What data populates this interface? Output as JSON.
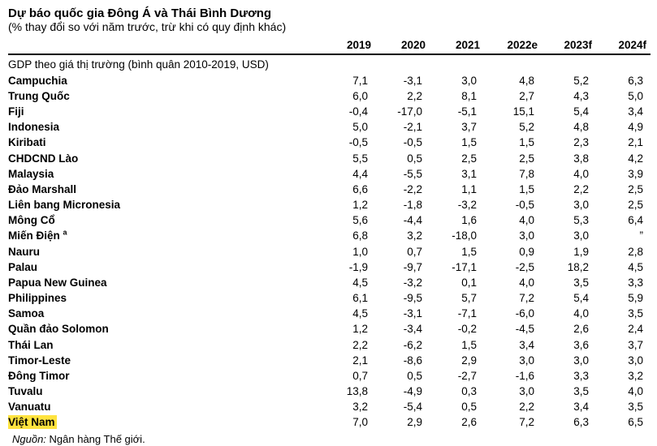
{
  "chart_data": {
    "type": "table",
    "title": "Dự báo quốc gia Đông Á và Thái Bình Dương",
    "subtitle": "(% thay đổi so với năm trước, trừ khi có quy định khác)",
    "columns": [
      "2019",
      "2020",
      "2021",
      "2022e",
      "2023f",
      "2024f"
    ],
    "section_label": "GDP theo giá thị trường (bình quân 2010-2019, USD)",
    "rows": [
      {
        "country": "Campuchia",
        "values": [
          "7,1",
          "-3,1",
          "3,0",
          "4,8",
          "5,2",
          "6,3"
        ]
      },
      {
        "country": "Trung Quốc",
        "values": [
          "6,0",
          "2,2",
          "8,1",
          "2,7",
          "4,3",
          "5,0"
        ]
      },
      {
        "country": "Fiji",
        "values": [
          "-0,4",
          "-17,0",
          "-5,1",
          "15,1",
          "5,4",
          "3,4"
        ]
      },
      {
        "country": "Indonesia",
        "values": [
          "5,0",
          "-2,1",
          "3,7",
          "5,2",
          "4,8",
          "4,9"
        ]
      },
      {
        "country": "Kiribati",
        "values": [
          "-0,5",
          "-0,5",
          "1,5",
          "1,5",
          "2,3",
          "2,1"
        ]
      },
      {
        "country": "CHDCND Lào",
        "values": [
          "5,5",
          "0,5",
          "2,5",
          "2,5",
          "3,8",
          "4,2"
        ]
      },
      {
        "country": "Malaysia",
        "values": [
          "4,4",
          "-5,5",
          "3,1",
          "7,8",
          "4,0",
          "3,9"
        ]
      },
      {
        "country": "Đảo Marshall",
        "values": [
          "6,6",
          "-2,2",
          "1,1",
          "1,5",
          "2,2",
          "2,5"
        ]
      },
      {
        "country": "Liên bang Micronesia",
        "values": [
          "1,2",
          "-1,8",
          "-3,2",
          "-0,5",
          "3,0",
          "2,5"
        ]
      },
      {
        "country": "Mông Cổ",
        "values": [
          "5,6",
          "-4,4",
          "1,6",
          "4,0",
          "5,3",
          "6,4"
        ]
      },
      {
        "country": "Miến Điện",
        "footnote_marker": "a",
        "values": [
          "6,8",
          "3,2",
          "-18,0",
          "3,0",
          "3,0",
          "”"
        ]
      },
      {
        "country": "Nauru",
        "values": [
          "1,0",
          "0,7",
          "1,5",
          "0,9",
          "1,9",
          "2,8"
        ]
      },
      {
        "country": "Palau",
        "values": [
          "-1,9",
          "-9,7",
          "-17,1",
          "-2,5",
          "18,2",
          "4,5"
        ]
      },
      {
        "country": "Papua New Guinea",
        "values": [
          "4,5",
          "-3,2",
          "0,1",
          "4,0",
          "3,5",
          "3,3"
        ]
      },
      {
        "country": "Philippines",
        "values": [
          "6,1",
          "-9,5",
          "5,7",
          "7,2",
          "5,4",
          "5,9"
        ]
      },
      {
        "country": "Samoa",
        "values": [
          "4,5",
          "-3,1",
          "-7,1",
          "-6,0",
          "4,0",
          "3,5"
        ]
      },
      {
        "country": "Quần đảo Solomon",
        "values": [
          "1,2",
          "-3,4",
          "-0,2",
          "-4,5",
          "2,6",
          "2,4"
        ]
      },
      {
        "country": "Thái Lan",
        "values": [
          "2,2",
          "-6,2",
          "1,5",
          "3,4",
          "3,6",
          "3,7"
        ]
      },
      {
        "country": "Timor-Leste",
        "values": [
          "2,1",
          "-8,6",
          "2,9",
          "3,0",
          "3,0",
          "3,0"
        ]
      },
      {
        "country": "Đông Timor",
        "values": [
          "0,7",
          "0,5",
          "-2,7",
          "-1,6",
          "3,3",
          "3,2"
        ]
      },
      {
        "country": "Tuvalu",
        "values": [
          "13,8",
          "-4,9",
          "0,3",
          "3,0",
          "3,5",
          "4,0"
        ]
      },
      {
        "country": "Vanuatu",
        "values": [
          "3,2",
          "-5,4",
          "0,5",
          "2,2",
          "3,4",
          "3,5"
        ]
      },
      {
        "country": "Việt Nam",
        "highlighted": true,
        "values": [
          "7,0",
          "2,9",
          "2,6",
          "7,2",
          "6,3",
          "6,5"
        ]
      }
    ]
  },
  "source": {
    "label": "Nguồn:",
    "text": " Ngân hàng Thế giới."
  },
  "colors": {
    "highlight": "#ffe33f",
    "text": "#000000",
    "background": "#ffffff",
    "rule": "#000000"
  }
}
